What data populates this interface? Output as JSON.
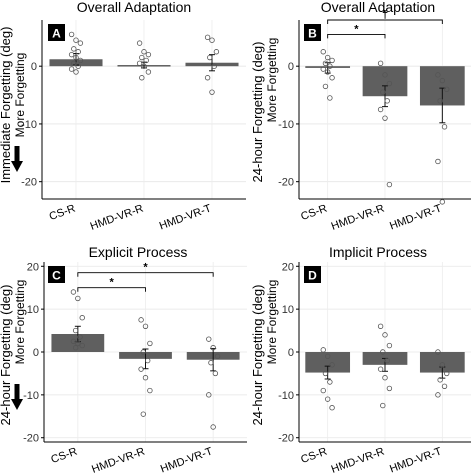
{
  "figure": {
    "arrow_label": "More Forgetting"
  },
  "chart_data": [
    {
      "panel_letter": "A",
      "title": "Overall Adaptation",
      "type": "bar",
      "ylabel": "Immediate Forgetting (deg)",
      "ylim": [
        -23,
        8
      ],
      "yticks": [
        0,
        -10,
        -20
      ],
      "grid": true,
      "categories": [
        "CS-R",
        "HMD-VR-R",
        "HMD-VR-T"
      ],
      "values": [
        1.2,
        0.2,
        0.6
      ],
      "errors": [
        1.0,
        0.5,
        1.4
      ],
      "points": [
        [
          5.5,
          4.5,
          4.0,
          3.0,
          2.5,
          2.0,
          1.5,
          1.0,
          0.5,
          0.0,
          -0.5,
          -1.0
        ],
        [
          4.0,
          2.5,
          2.0,
          1.5,
          1.0,
          0.5,
          0.0,
          -1.0,
          -2.0
        ],
        [
          5.0,
          4.5,
          2.5,
          1.5,
          0.0,
          -2.0,
          -4.5
        ]
      ],
      "significance": []
    },
    {
      "panel_letter": "B",
      "title": "Overall Adaptation",
      "type": "bar",
      "ylabel": "24-hour Forgetting (deg)",
      "ylim": [
        -23,
        8
      ],
      "yticks": [
        0,
        -10,
        -20
      ],
      "grid": true,
      "categories": [
        "CS-R",
        "HMD-VR-R",
        "HMD-VR-T"
      ],
      "values": [
        -0.3,
        -5.2,
        -6.8
      ],
      "errors": [
        0.9,
        1.8,
        3.0
      ],
      "points": [
        [
          2.5,
          1.5,
          1.0,
          0.5,
          0.0,
          -0.5,
          -1.0,
          -2.0,
          -3.5,
          -5.5
        ],
        [
          0.5,
          -1.5,
          -3.0,
          -4.5,
          -6.0,
          -7.5,
          -9.0,
          -20.5
        ],
        [
          -1.5,
          -2.5,
          -4.0,
          -6.0,
          -10.5,
          -16.5,
          -23.5
        ]
      ],
      "significance": [
        {
          "from": 0,
          "to": 1,
          "label": "*",
          "y": 5.5
        },
        {
          "from": 0,
          "to": 2,
          "label": "†",
          "y": 8.0
        }
      ]
    },
    {
      "panel_letter": "C",
      "title": "Explicit Process",
      "type": "bar",
      "ylabel": "24-hour Forgetting (deg)",
      "ylim": [
        -21,
        21
      ],
      "yticks": [
        20,
        10,
        0,
        -10,
        -20
      ],
      "grid": true,
      "categories": [
        "CS-R",
        "HMD-VR-R",
        "HMD-VR-T"
      ],
      "values": [
        4.2,
        -1.6,
        -1.8
      ],
      "errors": [
        1.8,
        2.3,
        2.6
      ],
      "points": [
        [
          14.0,
          12.5,
          8.0,
          5.0,
          3.5,
          2.5,
          2.0,
          1.5,
          1.0
        ],
        [
          7.5,
          6.0,
          2.0,
          0.0,
          -2.0,
          -4.0,
          -6.0,
          -9.0,
          -14.5
        ],
        [
          3.0,
          1.0,
          -1.0,
          -2.5,
          -5.0,
          -10.0,
          -17.5
        ]
      ],
      "significance": [
        {
          "from": 0,
          "to": 1,
          "label": "*",
          "y": 15.0
        },
        {
          "from": 0,
          "to": 2,
          "label": "*",
          "y": 18.5
        }
      ]
    },
    {
      "panel_letter": "D",
      "title": "Implicit Process",
      "type": "bar",
      "ylabel": "24-hour Forgetting (deg)",
      "ylim": [
        -21,
        21
      ],
      "yticks": [
        20,
        10,
        0,
        -10,
        -20
      ],
      "grid": true,
      "categories": [
        "CS-R",
        "HMD-VR-R",
        "HMD-VR-T"
      ],
      "values": [
        -4.8,
        -3.0,
        -4.8
      ],
      "errors": [
        1.5,
        1.5,
        1.3
      ],
      "points": [
        [
          0.5,
          -1.0,
          -3.0,
          -5.0,
          -7.0,
          -9.0,
          -11.0,
          -13.0
        ],
        [
          6.0,
          4.0,
          1.5,
          0.0,
          -2.0,
          -4.0,
          -6.0,
          -8.5,
          -12.5
        ],
        [
          0.0,
          -3.0,
          -5.0,
          -6.5,
          -8.0,
          -10.0
        ]
      ],
      "significance": []
    }
  ]
}
